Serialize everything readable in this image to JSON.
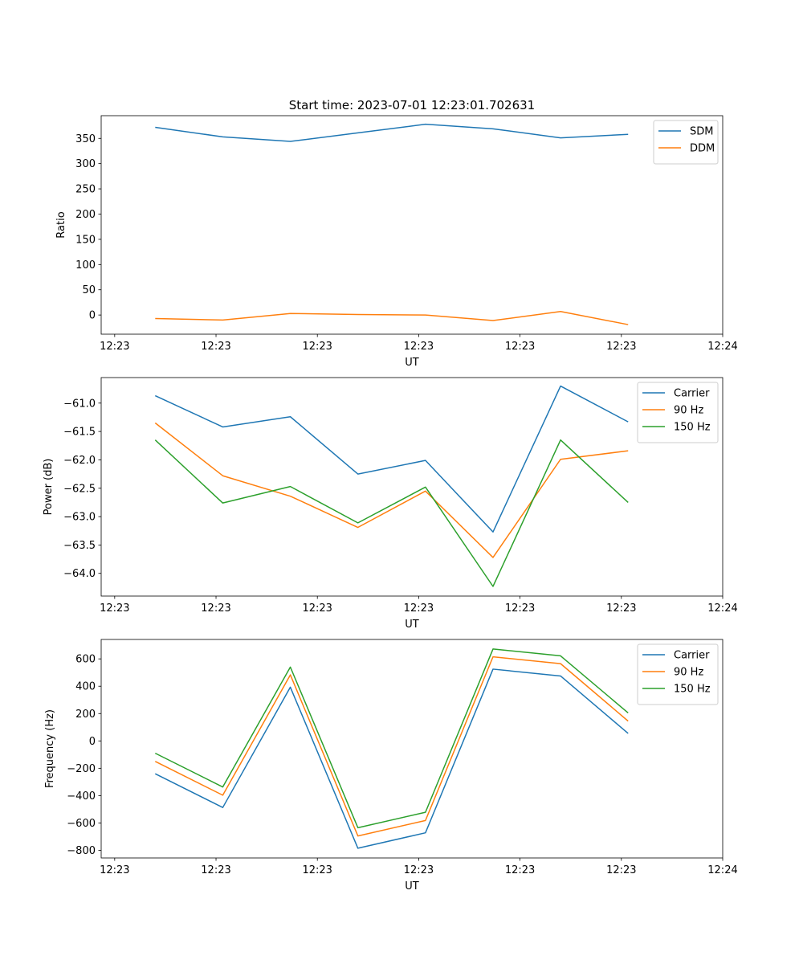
{
  "figure": {
    "suptitle": "Start time: 2023-07-01 12:23:01.702631"
  },
  "colors": {
    "blue": "#1f77b4",
    "orange": "#ff7f0e",
    "green": "#2ca02c"
  },
  "chart_data": [
    {
      "type": "line",
      "title": "Start time: 2023-07-01 12:23:01.702631",
      "xlabel": "UT",
      "ylabel": "Ratio",
      "x": [
        1,
        2,
        3,
        4,
        5,
        6,
        7,
        8
      ],
      "xlim": [
        0.2,
        9.4
      ],
      "xticks": [
        0.4,
        1.9,
        3.4,
        4.9,
        6.4,
        7.9,
        9.4
      ],
      "xtick_labels": [
        "12:23",
        "12:23",
        "12:23",
        "12:23",
        "12:23",
        "12:23",
        "12:24"
      ],
      "ylim": [
        -38,
        395
      ],
      "yticks": [
        0,
        50,
        100,
        150,
        200,
        250,
        300,
        350
      ],
      "ytick_labels": [
        "0",
        "50",
        "100",
        "150",
        "200",
        "250",
        "300",
        "350"
      ],
      "legend": "top-right",
      "series": [
        {
          "name": "SDM",
          "color": "#1f77b4",
          "values": [
            372,
            353,
            344,
            361,
            378,
            369,
            351,
            358
          ]
        },
        {
          "name": "DDM",
          "color": "#ff7f0e",
          "values": [
            -7,
            -10,
            3,
            1,
            0,
            -11,
            7,
            -19
          ]
        }
      ]
    },
    {
      "type": "line",
      "xlabel": "UT",
      "ylabel": "Power (dB)",
      "x": [
        1,
        2,
        3,
        4,
        5,
        6,
        7,
        8
      ],
      "xlim": [
        0.2,
        9.4
      ],
      "xticks": [
        0.4,
        1.9,
        3.4,
        4.9,
        6.4,
        7.9,
        9.4
      ],
      "xtick_labels": [
        "12:23",
        "12:23",
        "12:23",
        "12:23",
        "12:23",
        "12:23",
        "12:24"
      ],
      "ylim": [
        -64.4,
        -60.55
      ],
      "yticks": [
        -64.0,
        -63.5,
        -63.0,
        -62.5,
        -62.0,
        -61.5,
        -61.0
      ],
      "ytick_labels": [
        "−64.0",
        "−63.5",
        "−63.0",
        "−62.5",
        "−62.0",
        "−61.5",
        "−61.0"
      ],
      "legend": "top-right",
      "series": [
        {
          "name": "Carrier",
          "color": "#1f77b4",
          "values": [
            -60.87,
            -61.42,
            -61.24,
            -62.25,
            -62.01,
            -63.27,
            -60.7,
            -61.33
          ]
        },
        {
          "name": "90 Hz",
          "color": "#ff7f0e",
          "values": [
            -61.35,
            -62.28,
            -62.64,
            -63.19,
            -62.55,
            -63.72,
            -61.99,
            -61.84
          ]
        },
        {
          "name": "150 Hz",
          "color": "#2ca02c",
          "values": [
            -61.65,
            -62.76,
            -62.47,
            -63.11,
            -62.48,
            -64.23,
            -61.65,
            -62.75
          ]
        }
      ]
    },
    {
      "type": "line",
      "xlabel": "UT",
      "ylabel": "Frequency (Hz)",
      "x": [
        1,
        2,
        3,
        4,
        5,
        6,
        7,
        8
      ],
      "xlim": [
        0.2,
        9.4
      ],
      "xticks": [
        0.4,
        1.9,
        3.4,
        4.9,
        6.4,
        7.9,
        9.4
      ],
      "xtick_labels": [
        "12:23",
        "12:23",
        "12:23",
        "12:23",
        "12:23",
        "12:23",
        "12:24"
      ],
      "ylim": [
        -856,
        742
      ],
      "yticks": [
        -800,
        -600,
        -400,
        -200,
        0,
        200,
        400,
        600
      ],
      "ytick_labels": [
        "−800",
        "−600",
        "−400",
        "−200",
        "0",
        "200",
        "400",
        "600"
      ],
      "legend": "top-right",
      "series": [
        {
          "name": "Carrier",
          "color": "#1f77b4",
          "values": [
            -240,
            -487,
            393,
            -785,
            -672,
            525,
            475,
            55
          ]
        },
        {
          "name": "90 Hz",
          "color": "#ff7f0e",
          "values": [
            -150,
            -397,
            483,
            -695,
            -582,
            615,
            565,
            145
          ]
        },
        {
          "name": "150 Hz",
          "color": "#2ca02c",
          "values": [
            -90,
            -337,
            540,
            -635,
            -522,
            672,
            622,
            205
          ]
        }
      ]
    }
  ]
}
